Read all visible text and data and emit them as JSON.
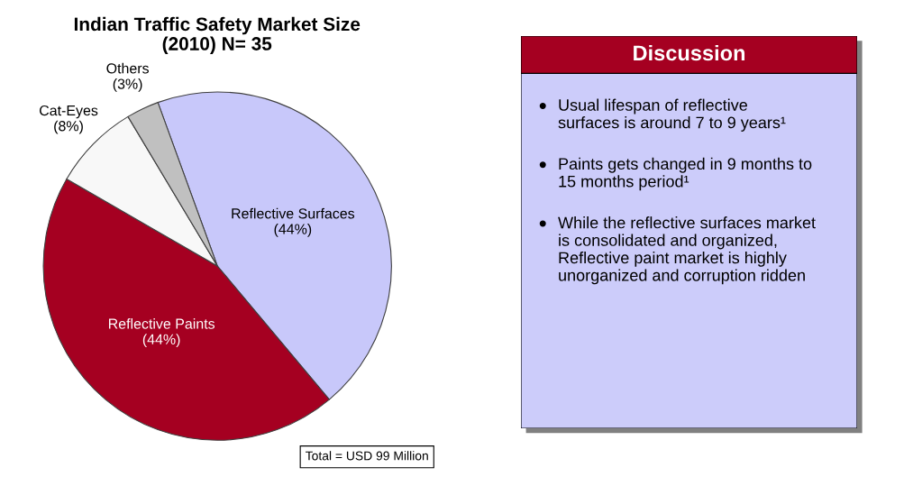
{
  "chart_data": [
    {
      "type": "pie",
      "title": "Indian Traffic Safety Market Size (2010) N= 35",
      "categories": [
        "Reflective Surfaces",
        "Reflective Paints",
        "Cat-Eyes",
        "Others"
      ],
      "values": [
        44,
        44,
        8,
        3
      ],
      "value_labels": [
        "(44%)",
        "(44%)",
        "(8%)",
        "(3%)"
      ],
      "colors": [
        "#c8c8fa",
        "#a50021",
        "#f8f8f8",
        "#c0c0c0"
      ],
      "annotations": [
        "Total = USD 99 Million"
      ]
    },
    {
      "type": "other",
      "title": "Discussion",
      "annotations": [
        "Usual lifespan of reflective surfaces is around 7 to 9 years¹",
        "Paints gets changed in 9 months to 15 months period¹",
        "While the reflective surfaces market is consolidated and organized, Reflective paint market is highly unorganized and corruption ridden"
      ]
    }
  ]
}
